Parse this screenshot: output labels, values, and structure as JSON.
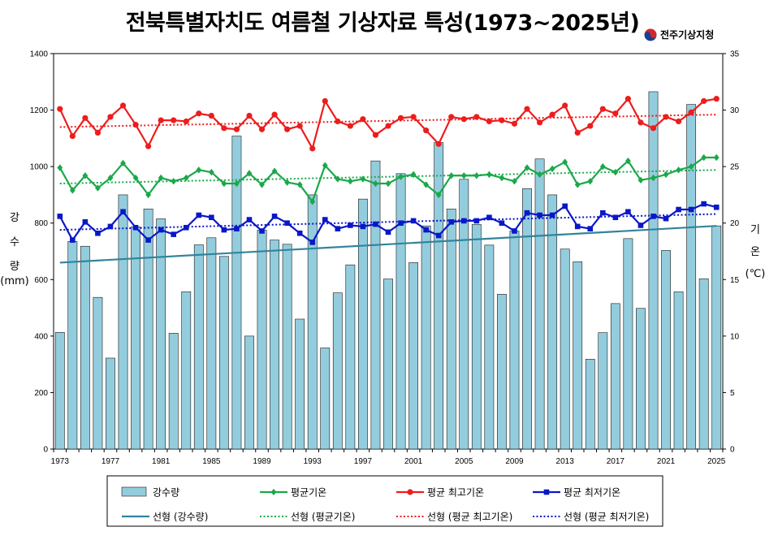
{
  "title": "전북특별자치도 여름철 기상자료 특성(1973~2025년)",
  "logo_text": "전주기상지청",
  "chart_data": {
    "type": "bar+line",
    "years": [
      1973,
      1974,
      1975,
      1976,
      1977,
      1978,
      1979,
      1980,
      1981,
      1982,
      1983,
      1984,
      1985,
      1986,
      1987,
      1988,
      1989,
      1990,
      1991,
      1992,
      1993,
      1994,
      1995,
      1996,
      1997,
      1998,
      1999,
      2000,
      2001,
      2002,
      2003,
      2004,
      2005,
      2006,
      2007,
      2008,
      2009,
      2010,
      2011,
      2012,
      2013,
      2014,
      2015,
      2016,
      2017,
      2018,
      2019,
      2020,
      2021,
      2022,
      2023,
      2024,
      2025
    ],
    "xticks": [
      "1973",
      "1977",
      "1981",
      "1985",
      "1989",
      "1993",
      "1997",
      "2001",
      "2005",
      "2009",
      "2013",
      "2017",
      "2021",
      "2025"
    ],
    "left_axis": {
      "label": [
        "강",
        "수",
        "량",
        "(mm)"
      ],
      "min": 0,
      "max": 1400,
      "step": 200,
      "ticks": [
        "0",
        "200",
        "400",
        "600",
        "800",
        "1000",
        "1200",
        "1400"
      ]
    },
    "right_axis": {
      "label": [
        "기",
        "온",
        "(℃)"
      ],
      "min": 0,
      "max": 35,
      "step": 5,
      "ticks": [
        "0",
        "5",
        "10",
        "15",
        "20",
        "25",
        "30",
        "35"
      ]
    },
    "series": [
      {
        "name": "강수량",
        "type": "bar",
        "axis": "left",
        "color": "#93CDDD",
        "values": [
          413,
          735,
          718,
          537,
          322,
          900,
          787,
          850,
          815,
          410,
          557,
          723,
          748,
          682,
          1108,
          400,
          775,
          740,
          725,
          460,
          900,
          358,
          553,
          652,
          885,
          1020,
          602,
          975,
          660,
          790,
          1085,
          850,
          955,
          795,
          722,
          548,
          772,
          922,
          1027,
          900,
          708,
          663,
          318,
          412,
          515,
          745,
          498,
          1265,
          703,
          557,
          1220,
          603,
          790
        ]
      },
      {
        "name": "평균기온",
        "type": "line",
        "axis": "right",
        "color": "#1BA84A",
        "marker": "diamond",
        "values": [
          24.9,
          22.9,
          24.2,
          23.1,
          24.0,
          25.3,
          24.0,
          22.5,
          24.0,
          23.7,
          24.0,
          24.7,
          24.5,
          23.5,
          23.5,
          24.4,
          23.4,
          24.6,
          23.6,
          23.4,
          21.9,
          25.1,
          23.9,
          23.7,
          23.9,
          23.5,
          23.5,
          24.1,
          24.3,
          23.4,
          22.5,
          24.2,
          24.2,
          24.2,
          24.3,
          24.0,
          23.7,
          24.9,
          24.3,
          24.8,
          25.4,
          23.4,
          23.7,
          25.0,
          24.5,
          25.5,
          23.8,
          24.0,
          24.3,
          24.7,
          25.0,
          25.8,
          25.8
        ]
      },
      {
        "name": "평균 최고기온",
        "type": "line",
        "axis": "right",
        "color": "#EE1C1C",
        "marker": "circle",
        "values": [
          30.1,
          27.7,
          29.3,
          28.0,
          29.4,
          30.4,
          28.7,
          26.8,
          29.1,
          29.1,
          29.0,
          29.7,
          29.5,
          28.4,
          28.3,
          29.5,
          28.3,
          29.6,
          28.3,
          28.6,
          26.6,
          30.8,
          29.0,
          28.6,
          29.2,
          27.8,
          28.6,
          29.3,
          29.4,
          28.2,
          27.0,
          29.4,
          29.2,
          29.4,
          29.0,
          29.1,
          28.8,
          30.1,
          28.9,
          29.6,
          30.4,
          28.0,
          28.6,
          30.1,
          29.7,
          31.0,
          28.9,
          28.4,
          29.4,
          29.0,
          29.8,
          30.8,
          31.0
        ]
      },
      {
        "name": "평균 최저기온",
        "type": "line",
        "axis": "right",
        "color": "#0A17C8",
        "marker": "square",
        "values": [
          20.6,
          18.5,
          20.1,
          19.1,
          19.7,
          21.0,
          19.6,
          18.5,
          19.4,
          19.0,
          19.6,
          20.7,
          20.5,
          19.4,
          19.5,
          20.3,
          19.3,
          20.6,
          20.0,
          19.1,
          18.3,
          20.3,
          19.5,
          19.8,
          19.7,
          19.9,
          19.2,
          20.0,
          20.2,
          19.4,
          18.9,
          20.1,
          20.2,
          20.2,
          20.5,
          20.0,
          19.3,
          20.9,
          20.7,
          20.7,
          21.5,
          19.7,
          19.5,
          20.9,
          20.5,
          21.0,
          19.8,
          20.6,
          20.4,
          21.2,
          21.2,
          21.7,
          21.4
        ]
      },
      {
        "name": "선형 (강수량)",
        "type": "trend",
        "axis": "left",
        "color": "#31849B",
        "dash": "solid",
        "start": 660,
        "end": 790
      },
      {
        "name": "선형 (평균기온)",
        "type": "trend",
        "axis": "right",
        "color": "#1BA84A",
        "dash": "dotted",
        "start": 23.5,
        "end": 24.7
      },
      {
        "name": "선형 (평균 최고기온)",
        "type": "trend",
        "axis": "right",
        "color": "#EE1C1C",
        "dash": "dotted",
        "start": 28.5,
        "end": 29.6
      },
      {
        "name": "선형 (평균 최저기온)",
        "type": "trend",
        "axis": "right",
        "color": "#0A17C8",
        "dash": "dotted",
        "start": 19.4,
        "end": 20.8
      }
    ],
    "legend_position": "bottom"
  }
}
